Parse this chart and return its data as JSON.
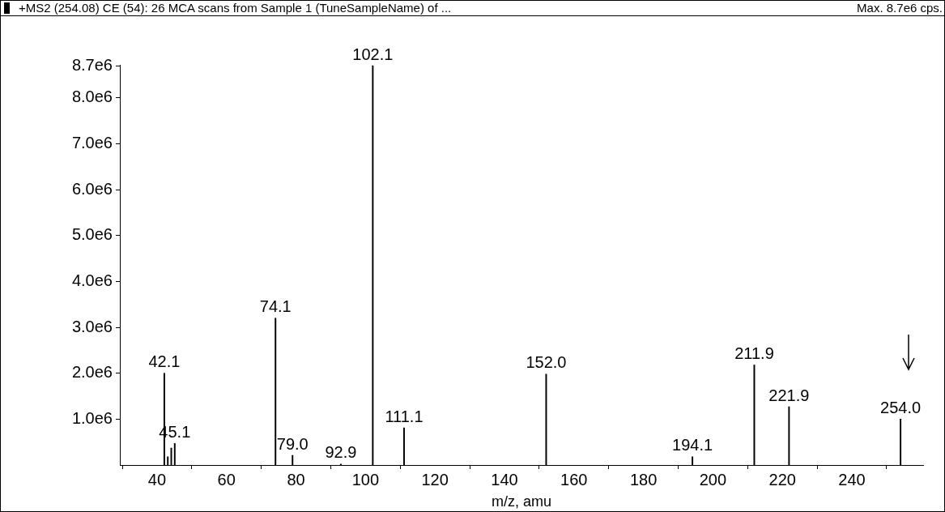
{
  "chart_data": {
    "type": "bar",
    "title": "+MS2 (254.08) CE (54): 26 MCA scans from Sample 1 (TuneSampleName) of ...",
    "xlabel": "m/z, amu",
    "x": [
      42.1,
      43.1,
      44.1,
      45.1,
      74.1,
      79.0,
      92.9,
      102.1,
      111.1,
      152.0,
      194.1,
      211.9,
      221.9,
      254.0
    ],
    "values": [
      2000000,
      180000,
      370000,
      470000,
      3200000,
      210000,
      20000,
      8700000,
      810000,
      1980000,
      180000,
      2180000,
      1270000,
      1000000
    ],
    "color": "#000000",
    "xlim": [
      29.3,
      260.5
    ],
    "xticks": [
      40,
      60,
      80,
      100,
      120,
      140,
      160,
      180,
      200,
      220,
      240
    ],
    "ylim": [
      0,
      8720000
    ],
    "yticks": [
      {
        "value": 1000000,
        "label": "1.0e6"
      },
      {
        "value": 2000000,
        "label": "2.0e6"
      },
      {
        "value": 3000000,
        "label": "3.0e6"
      },
      {
        "value": 4000000,
        "label": "4.0e6"
      },
      {
        "value": 5000000,
        "label": "5.0e6"
      },
      {
        "value": 6000000,
        "label": "6.0e6"
      },
      {
        "value": 7000000,
        "label": "7.0e6"
      },
      {
        "value": 8000000,
        "label": "8.0e6"
      },
      {
        "value": 8700000,
        "label": "8.7e6"
      }
    ],
    "grid": false,
    "legend": false,
    "annotations": [
      "Max. 8.7e6 cps.",
      {
        "text": "42.1",
        "x": 42.1,
        "y": 2000000
      },
      {
        "text": "45.1",
        "x": 45.1,
        "y": 470000
      },
      {
        "text": "74.1",
        "x": 74.1,
        "y": 3200000
      },
      {
        "text": "79.0",
        "x": 79.0,
        "y": 210000
      },
      {
        "text": "92.9",
        "x": 92.9,
        "y": 20000
      },
      {
        "text": "102.1",
        "x": 102.1,
        "y": 8700000
      },
      {
        "text": "111.1",
        "x": 111.1,
        "y": 810000
      },
      {
        "text": "152.0",
        "x": 152.0,
        "y": 1980000
      },
      {
        "text": "194.1",
        "x": 194.1,
        "y": 180000
      },
      {
        "text": "211.9",
        "x": 211.9,
        "y": 2180000
      },
      {
        "text": "221.9",
        "x": 221.9,
        "y": 1270000
      },
      {
        "text": "254.0",
        "x": 254.0,
        "y": 1000000
      }
    ]
  }
}
